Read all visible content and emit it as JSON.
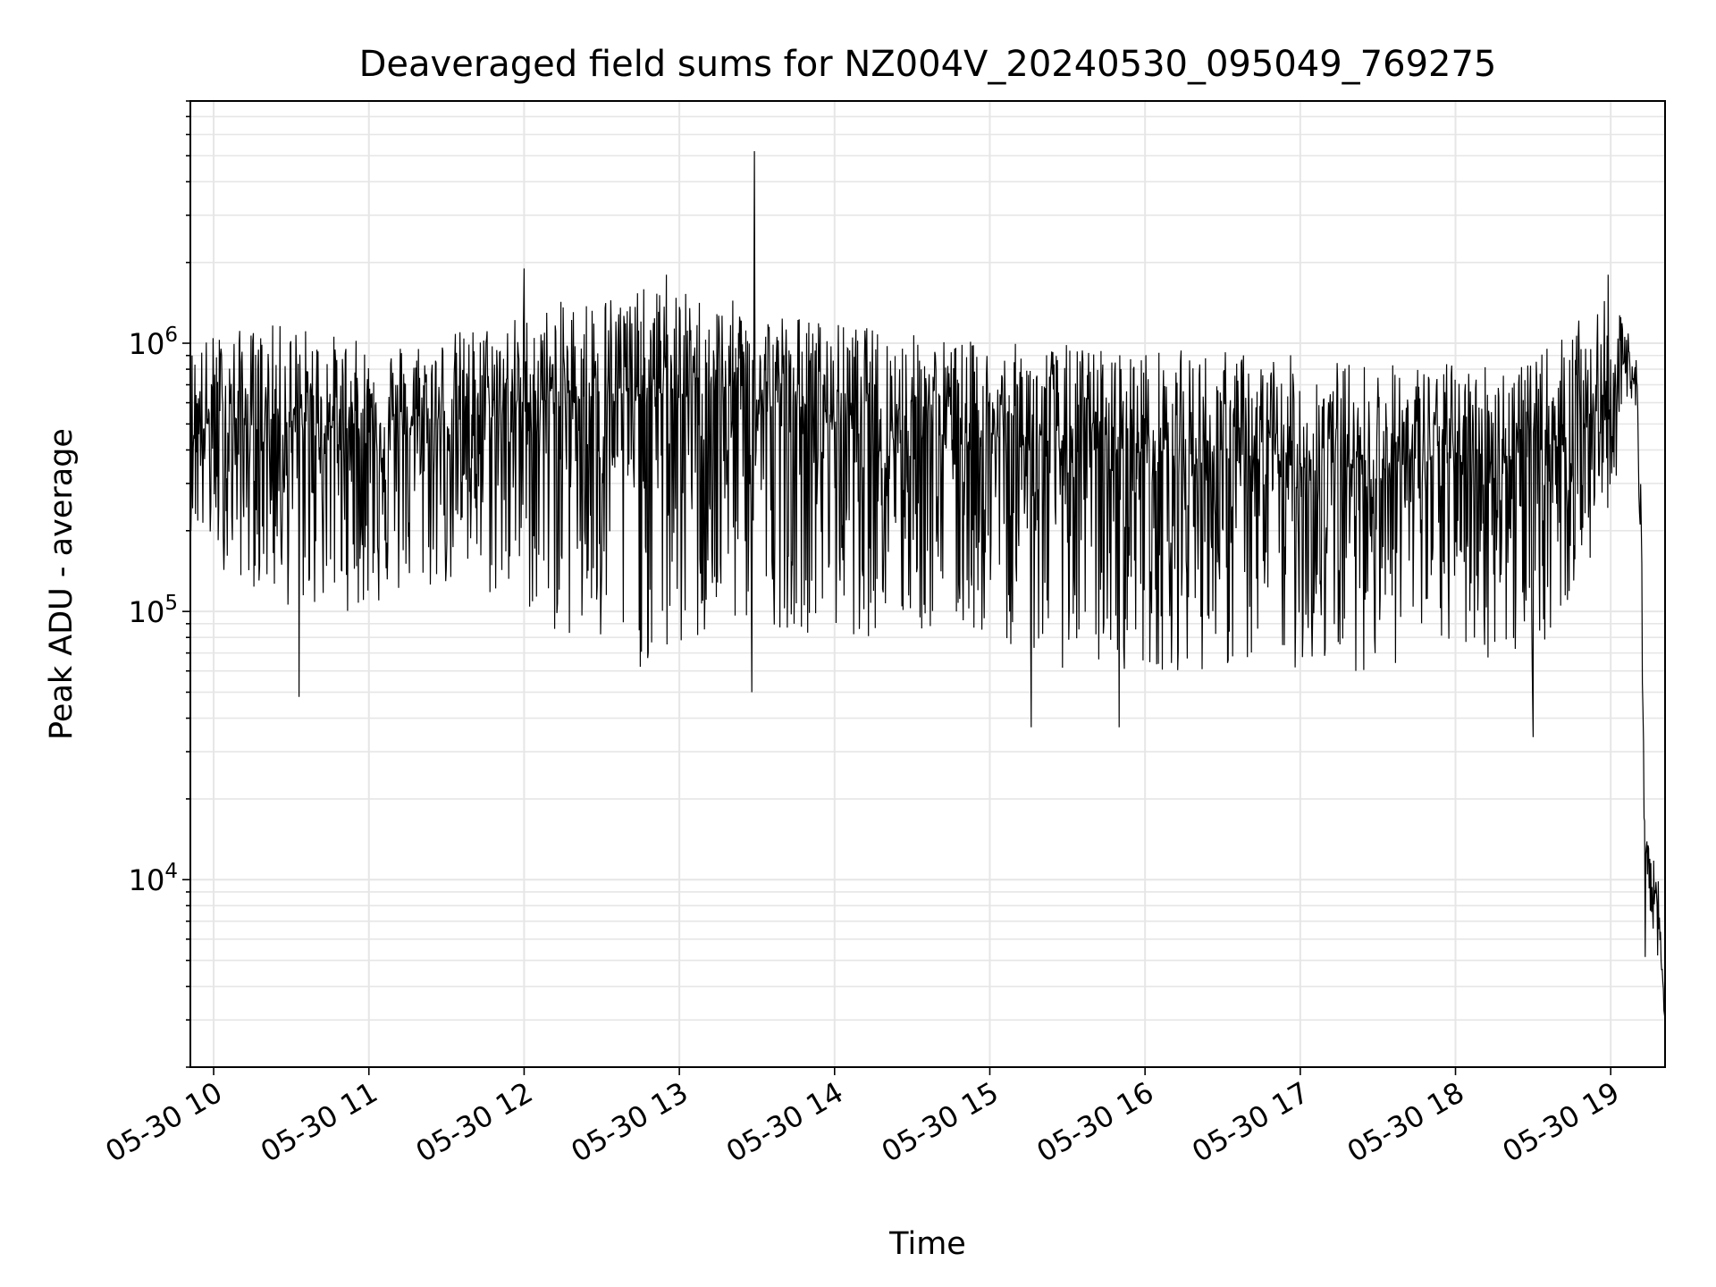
{
  "chart_data": {
    "type": "line",
    "title": "Deaveraged field sums for NZ004V_20240530_095049_769275",
    "xlabel": "Time",
    "ylabel": "Peak ADU - average",
    "yscale": "log",
    "xlim": [
      "2024-05-30T09:51",
      "2024-05-30T19:21"
    ],
    "ylim": [
      2000,
      8000000
    ],
    "grid": true,
    "line_color": "#000000",
    "x_ticks": [
      "05-30 10",
      "05-30 11",
      "05-30 12",
      "05-30 13",
      "05-30 14",
      "05-30 15",
      "05-30 16",
      "05-30 17",
      "05-30 18",
      "05-30 19"
    ],
    "y_ticks": [
      {
        "value": 10000,
        "base": "10",
        "exp": "4"
      },
      {
        "value": 100000,
        "base": "10",
        "exp": "5"
      },
      {
        "value": 1000000,
        "base": "10",
        "exp": "6"
      }
    ],
    "series": [
      {
        "x": [
          "2024-05-30T09:51",
          "2024-05-30T10:00",
          "2024-05-30T10:30",
          "2024-05-30T11:00",
          "2024-05-30T11:30",
          "2024-05-30T12:00",
          "2024-05-30T12:30",
          "2024-05-30T12:55",
          "2024-05-30T13:29",
          "2024-05-30T14:00",
          "2024-05-30T14:30",
          "2024-05-30T15:00",
          "2024-05-30T15:30",
          "2024-05-30T16:00",
          "2024-05-30T16:30",
          "2024-05-30T17:00",
          "2024-05-30T17:30",
          "2024-05-30T18:00",
          "2024-05-30T18:30",
          "2024-05-30T19:00",
          "2024-05-30T19:05",
          "2024-05-30T19:10",
          "2024-05-30T19:12",
          "2024-05-30T19:13",
          "2024-05-30T19:15",
          "2024-05-30T19:18",
          "2024-05-30T19:21"
        ],
        "y_center": [
          500000,
          500000,
          500000,
          480000,
          500000,
          600000,
          650000,
          650000,
          600000,
          550000,
          500000,
          450000,
          400000,
          400000,
          350000,
          350000,
          350000,
          380000,
          380000,
          600000,
          850000,
          700000,
          200000,
          12000,
          12000,
          8000,
          3000
        ],
        "y_min": [
          200000,
          150000,
          100000,
          100000,
          120000,
          100000,
          60000,
          60000,
          90000,
          80000,
          80000,
          80000,
          60000,
          60000,
          60000,
          60000,
          60000,
          70000,
          60000,
          200000,
          600000,
          500000,
          100000,
          4500,
          8000,
          5000,
          3000
        ],
        "y_max": [
          1000000,
          1100000,
          1200000,
          1000000,
          1100000,
          1300000,
          1600000,
          1600000,
          1400000,
          1200000,
          1100000,
          1000000,
          1000000,
          950000,
          950000,
          900000,
          850000,
          850000,
          900000,
          1500000,
          1200000,
          1000000,
          300000,
          17000,
          13000,
          12000,
          3000
        ],
        "spikes": [
          {
            "x": "2024-05-30T13:29",
            "y": 5200000
          },
          {
            "x": "2024-05-30T12:00",
            "y": 1900000
          },
          {
            "x": "2024-05-30T12:55",
            "y": 1800000
          },
          {
            "x": "2024-05-30T18:59",
            "y": 1800000
          },
          {
            "x": "2024-05-30T15:16",
            "y": 37000
          },
          {
            "x": "2024-05-30T15:50",
            "y": 37000
          },
          {
            "x": "2024-05-30T18:30",
            "y": 34000
          },
          {
            "x": "2024-05-30T10:33",
            "y": 48000
          },
          {
            "x": "2024-05-30T13:28",
            "y": 50000
          }
        ]
      }
    ]
  }
}
